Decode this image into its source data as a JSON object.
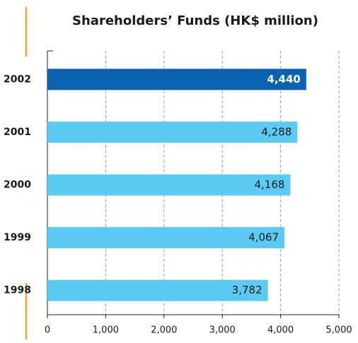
{
  "chart_data": {
    "type": "barh",
    "title": "Shareholders’ Funds (HK$ million)",
    "categories": [
      "2002",
      "2001",
      "2000",
      "1999",
      "1998"
    ],
    "values": [
      4440,
      4288,
      4168,
      4067,
      3782
    ],
    "value_labels": [
      "4,440",
      "4,288",
      "4,168",
      "4,067",
      "3,782"
    ],
    "colors": [
      "#0b62b0",
      "#5ccbf4",
      "#5ccbf4",
      "#5ccbf4",
      "#5ccbf4"
    ],
    "value_label_colors": [
      "#ffffff",
      "#1a1a1a",
      "#1a1a1a",
      "#1a1a1a",
      "#1a1a1a"
    ],
    "xlim": [
      0,
      5000
    ],
    "xticks": [
      0,
      {
        "value": 1000,
        "label": "1,000"
      },
      {
        "value": 2000,
        "label": "2,000"
      },
      {
        "value": 3000,
        "label": "3,000"
      },
      {
        "value": 4000,
        "label": "4,000"
      },
      {
        "value": 5000,
        "label": "5,000"
      }
    ],
    "grid": true
  }
}
